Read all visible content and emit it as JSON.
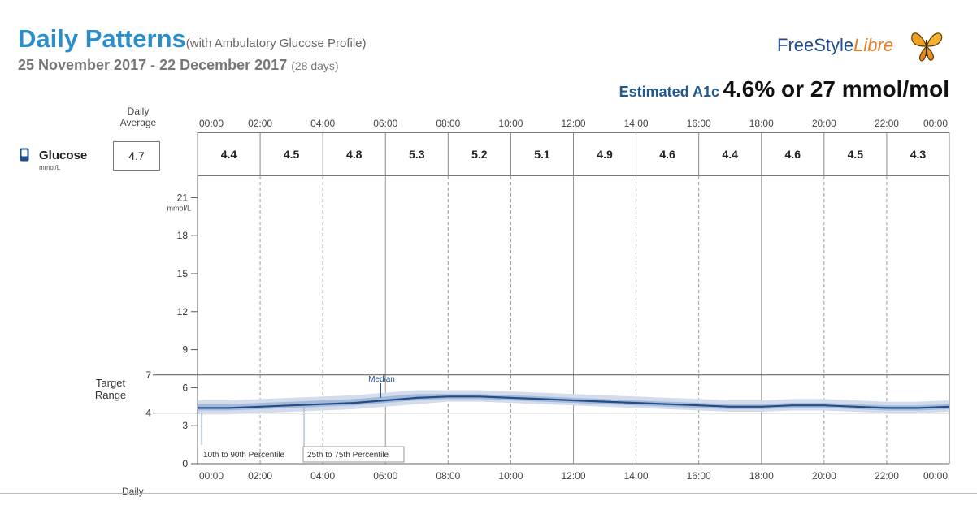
{
  "header": {
    "title": "Daily Patterns",
    "title_suffix": "(with Ambulatory Glucose Profile)",
    "date_range": "25 November 2017 - 22 December 2017",
    "days": "(28 days)",
    "brand_free": "FreeStyle",
    "brand_libre": "Libre",
    "a1c_label": "Estimated A1c",
    "a1c_value": "4.6% or 27 mmol/mol"
  },
  "table": {
    "daily_average_label_1": "Daily",
    "daily_average_label_2": "Average",
    "row_label": "Glucose",
    "row_unit": "mmol/L",
    "daily_average_value": "4.7",
    "hour_labels": [
      "00:00",
      "02:00",
      "04:00",
      "06:00",
      "08:00",
      "10:00",
      "12:00",
      "14:00",
      "16:00",
      "18:00",
      "20:00",
      "22:00",
      "00:00"
    ],
    "cells": [
      "4.4",
      "4.5",
      "4.8",
      "5.3",
      "5.2",
      "5.1",
      "4.9",
      "4.6",
      "4.4",
      "4.6",
      "4.5",
      "4.3"
    ]
  },
  "chart_data": {
    "type": "area",
    "ylabel": "mmol/L",
    "ylim": [
      0,
      22
    ],
    "ytick_values": [
      0,
      3,
      4,
      6,
      7,
      9,
      12,
      15,
      18,
      21
    ],
    "ytick_labels": [
      "0",
      "3",
      "4",
      "6",
      "7",
      "9",
      "12",
      "15",
      "18",
      "21"
    ],
    "target_range": [
      4,
      7
    ],
    "target_range_label_1": "Target",
    "target_range_label_2": "Range",
    "x_labels": [
      "00:00",
      "02:00",
      "04:00",
      "06:00",
      "08:00",
      "10:00",
      "12:00",
      "14:00",
      "16:00",
      "18:00",
      "20:00",
      "22:00",
      "00:00"
    ],
    "x_hours": [
      0,
      1,
      2,
      3,
      4,
      5,
      6,
      7,
      8,
      9,
      10,
      11,
      12,
      13,
      14,
      15,
      16,
      17,
      18,
      19,
      20,
      21,
      22,
      23,
      24
    ],
    "series": [
      {
        "name": "Median",
        "values": [
          4.4,
          4.4,
          4.5,
          4.6,
          4.7,
          4.8,
          5.0,
          5.2,
          5.3,
          5.3,
          5.2,
          5.1,
          5.0,
          4.9,
          4.8,
          4.7,
          4.6,
          4.5,
          4.5,
          4.6,
          4.6,
          4.5,
          4.4,
          4.4,
          4.5
        ]
      },
      {
        "name": "25th to 75th Percentile",
        "low": [
          4.2,
          4.2,
          4.3,
          4.4,
          4.5,
          4.6,
          4.8,
          5.0,
          5.1,
          5.1,
          5.0,
          4.9,
          4.8,
          4.7,
          4.6,
          4.5,
          4.4,
          4.3,
          4.3,
          4.4,
          4.4,
          4.3,
          4.2,
          4.2,
          4.3
        ],
        "high": [
          4.7,
          4.7,
          4.8,
          4.9,
          5.0,
          5.1,
          5.3,
          5.5,
          5.5,
          5.5,
          5.4,
          5.3,
          5.2,
          5.1,
          5.0,
          4.9,
          4.8,
          4.7,
          4.7,
          4.8,
          4.8,
          4.7,
          4.6,
          4.6,
          4.7
        ]
      },
      {
        "name": "10th to 90th Percentile",
        "low": [
          3.9,
          3.9,
          4.0,
          4.1,
          4.2,
          4.3,
          4.5,
          4.7,
          4.9,
          4.9,
          4.8,
          4.7,
          4.6,
          4.5,
          4.4,
          4.3,
          4.2,
          4.1,
          4.1,
          4.2,
          4.2,
          4.1,
          4.0,
          4.0,
          4.1
        ],
        "high": [
          5.0,
          5.0,
          5.1,
          5.2,
          5.3,
          5.4,
          5.6,
          5.8,
          5.8,
          5.8,
          5.7,
          5.6,
          5.5,
          5.4,
          5.3,
          5.2,
          5.1,
          5.0,
          5.0,
          5.1,
          5.1,
          5.0,
          4.9,
          4.9,
          5.0
        ]
      }
    ],
    "annotations": {
      "median": "Median",
      "p10_90": "10th to 90th Percentile",
      "p25_75": "25th to 75th Percentile"
    },
    "bottom_label": "Daily",
    "colors": {
      "median": "#1f4e8c",
      "iqr": "#a7b9d6",
      "outer": "#d3dced",
      "grid": "#999999"
    }
  }
}
